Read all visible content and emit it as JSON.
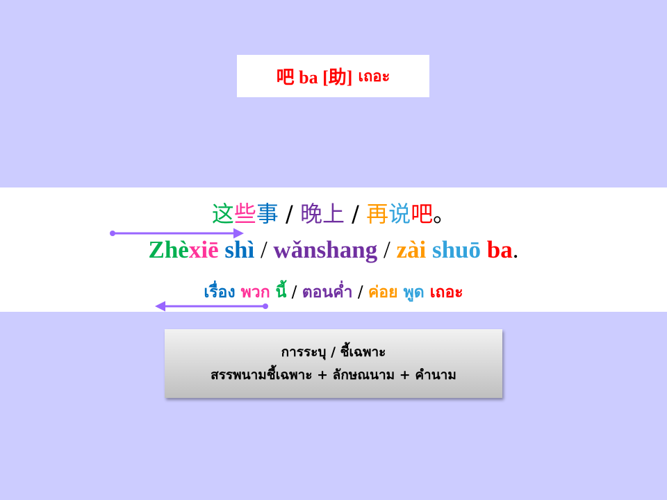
{
  "title": {
    "zh": "吧 ba [助]",
    "th": "เถอะ"
  },
  "example": {
    "hanzi": [
      {
        "text": "这",
        "color": "#00b050"
      },
      {
        "text": "些",
        "color": "#ff3399"
      },
      {
        "text": "事",
        "color": "#0070c0"
      },
      {
        "text": " / ",
        "color": "#000000"
      },
      {
        "text": "晚上",
        "color": "#7030a0"
      },
      {
        "text": " / ",
        "color": "#000000"
      },
      {
        "text": "再",
        "color": "#ff9900"
      },
      {
        "text": "说",
        "color": "#33a3dc"
      },
      {
        "text": "吧",
        "color": "#ff0000"
      },
      {
        "text": "。",
        "color": "#000000"
      }
    ],
    "pinyin": [
      {
        "text": "Zhè",
        "color": "#00b050"
      },
      {
        "text": "xiē",
        "color": "#ff3399"
      },
      {
        "text": " shì",
        "color": "#0070c0"
      },
      {
        "text": " / ",
        "color": "#000000"
      },
      {
        "text": "wǎnshang",
        "color": "#7030a0"
      },
      {
        "text": " / ",
        "color": "#000000"
      },
      {
        "text": "zài",
        "color": "#ff9900"
      },
      {
        "text": " shuō",
        "color": "#33a3dc"
      },
      {
        "text": " ba",
        "color": "#ff0000"
      },
      {
        "text": ".",
        "color": "#000000"
      }
    ],
    "thai": [
      {
        "text": "เรื่อง",
        "color": "#0070c0"
      },
      {
        "text": " พวก",
        "color": "#ff3399"
      },
      {
        "text": " นี้",
        "color": "#00b050"
      },
      {
        "text": " / ",
        "color": "#000000"
      },
      {
        "text": "ตอนค่ำ",
        "color": "#7030a0"
      },
      {
        "text": " / ",
        "color": "#000000"
      },
      {
        "text": "ค่อย",
        "color": "#ff9900"
      },
      {
        "text": " พูด",
        "color": "#33a3dc"
      },
      {
        "text": " เถอะ",
        "color": "#ff0000"
      }
    ]
  },
  "note": {
    "line1": "การระบุ / ชี้เฉพาะ",
    "line2": "สรรพนามชี้เฉพาะ + ลักษณนาม + คำนาม"
  },
  "arrow_color": "#9966ff"
}
